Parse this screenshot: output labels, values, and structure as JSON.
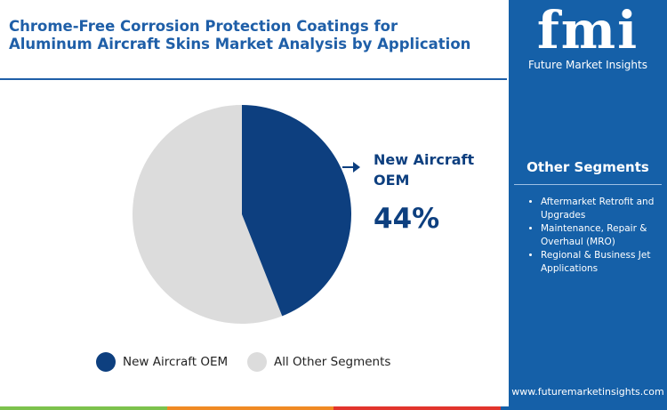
{
  "chart_data": {
    "type": "pie",
    "title": "Chrome-Free Corrosion Protection Coatings for Aluminum Aircraft Skins Market Analysis by Application",
    "categories": [
      "New Aircraft OEM",
      "All Other Segments"
    ],
    "values": [
      44,
      56
    ],
    "value_labels": [
      "44%",
      null
    ],
    "colors": [
      "#0d3f7f",
      "#dcdcdc"
    ]
  },
  "side_panel": {
    "logo": "fmi",
    "brand": "Future Market Insights",
    "heading": "Other Segments",
    "items": [
      "Aftermarket Retrofit and Upgrades",
      "Maintenance, Repair & Overhaul (MRO)",
      "Regional & Business Jet Applications"
    ],
    "website": "www.futuremarketinsights.com"
  }
}
